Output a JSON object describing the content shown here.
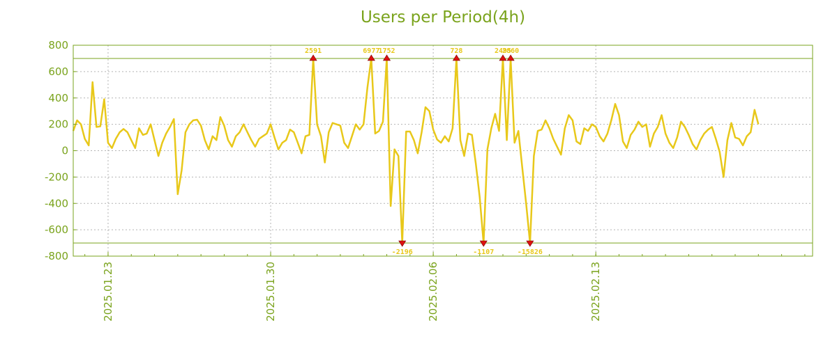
{
  "chart_data": {
    "type": "line",
    "title": "Users per Period(4h)",
    "xlabel": "",
    "ylabel": "",
    "ylim": [
      -800,
      800
    ],
    "yticks": [
      -800,
      -600,
      -400,
      -200,
      0,
      200,
      400,
      600,
      800
    ],
    "xlim": [
      "2025-01-21 12:00",
      "2025-02-22 08:00"
    ],
    "xticks": [
      {
        "label": "2025.01.23",
        "at": "2025-01-23 00:00"
      },
      {
        "label": "2025.01.30",
        "at": "2025-01-30 00:00"
      },
      {
        "label": "2025.02.06",
        "at": "2025-02-06 00:00"
      },
      {
        "label": "2025.02.13",
        "at": "2025-02-13 00:00"
      }
    ],
    "grid": true,
    "clip_bounds": [
      -700,
      700
    ],
    "series": [
      {
        "color": "#e8c81a",
        "values": [
          150,
          230,
          200,
          90,
          40,
          520,
          180,
          185,
          390,
          60,
          20,
          90,
          140,
          165,
          140,
          80,
          20,
          170,
          120,
          130,
          200,
          80,
          -40,
          60,
          130,
          180,
          240,
          -330,
          -150,
          140,
          200,
          230,
          235,
          190,
          80,
          10,
          110,
          80,
          255,
          190,
          80,
          30,
          110,
          140,
          200,
          140,
          80,
          30,
          90,
          110,
          130,
          200,
          100,
          10,
          60,
          80,
          160,
          140,
          60,
          -20,
          110,
          120,
          700,
          200,
          110,
          -90,
          140,
          210,
          200,
          190,
          60,
          20,
          110,
          200,
          160,
          200,
          480,
          700,
          130,
          150,
          220,
          700,
          -420,
          10,
          -40,
          -700,
          145,
          145,
          80,
          -20,
          140,
          330,
          300,
          160,
          85,
          60,
          110,
          70,
          170,
          700,
          80,
          -40,
          130,
          120,
          -100,
          -350,
          -700,
          10,
          170,
          280,
          150,
          700,
          80,
          700,
          60,
          150,
          -130,
          -400,
          -700,
          -40,
          150,
          160,
          230,
          170,
          90,
          30,
          -30,
          170,
          270,
          230,
          70,
          50,
          170,
          150,
          200,
          180,
          110,
          70,
          130,
          230,
          355,
          270,
          70,
          20,
          120,
          160,
          220,
          180,
          200,
          30,
          130,
          180,
          270,
          130,
          60,
          20,
          100,
          220,
          180,
          120,
          50,
          10,
          80,
          130,
          160,
          180,
          90,
          -10,
          -200,
          80,
          210,
          100,
          90,
          40,
          110,
          140,
          310,
          200
        ],
        "markers": [
          {
            "index": 62,
            "label": "2591",
            "dir": "up"
          },
          {
            "index": 77,
            "label": "6977",
            "dir": "up"
          },
          {
            "index": 81,
            "label": "1752",
            "dir": "up"
          },
          {
            "index": 85,
            "label": "-2196",
            "dir": "down"
          },
          {
            "index": 99,
            "label": "728",
            "dir": "up"
          },
          {
            "index": 106,
            "label": "-1107",
            "dir": "down"
          },
          {
            "index": 111,
            "label": "2495",
            "dir": "up"
          },
          {
            "index": 113,
            "label": "2860",
            "dir": "up"
          },
          {
            "index": 118,
            "label": "-15826",
            "dir": "down"
          }
        ]
      }
    ]
  },
  "colors": {
    "frame": "#7aa31c",
    "grid": "#b3b3b3",
    "line": "#e8c81a",
    "marker_fill": "#dd1111",
    "annotation": "#e8c81a"
  }
}
